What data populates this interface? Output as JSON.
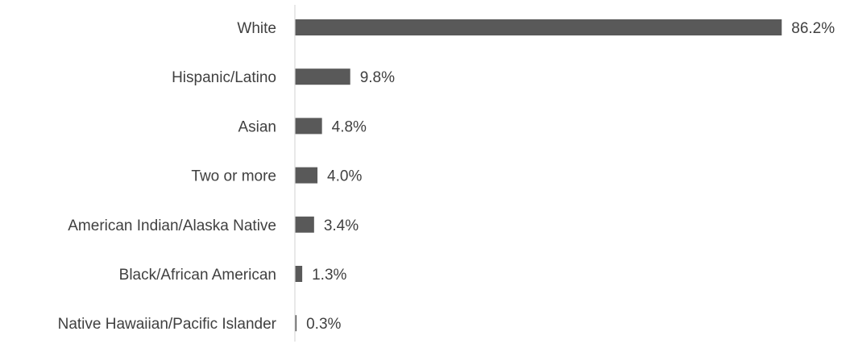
{
  "chart_data": {
    "type": "bar",
    "orientation": "horizontal",
    "categories": [
      "White",
      "Hispanic/Latino",
      "Asian",
      "Two or more",
      "American Indian/Alaska Native",
      "Black/African American",
      "Native Hawaiian/Pacific Islander"
    ],
    "values": [
      86.2,
      9.8,
      4.8,
      4.0,
      3.4,
      1.3,
      0.3
    ],
    "value_labels": [
      "86.2%",
      "9.8%",
      "4.8%",
      "4.0%",
      "3.4%",
      "1.3%",
      "0.3%"
    ],
    "title": "",
    "xlabel": "",
    "ylabel": "",
    "grid": false,
    "legend": "none",
    "bar_color": "#595959"
  }
}
